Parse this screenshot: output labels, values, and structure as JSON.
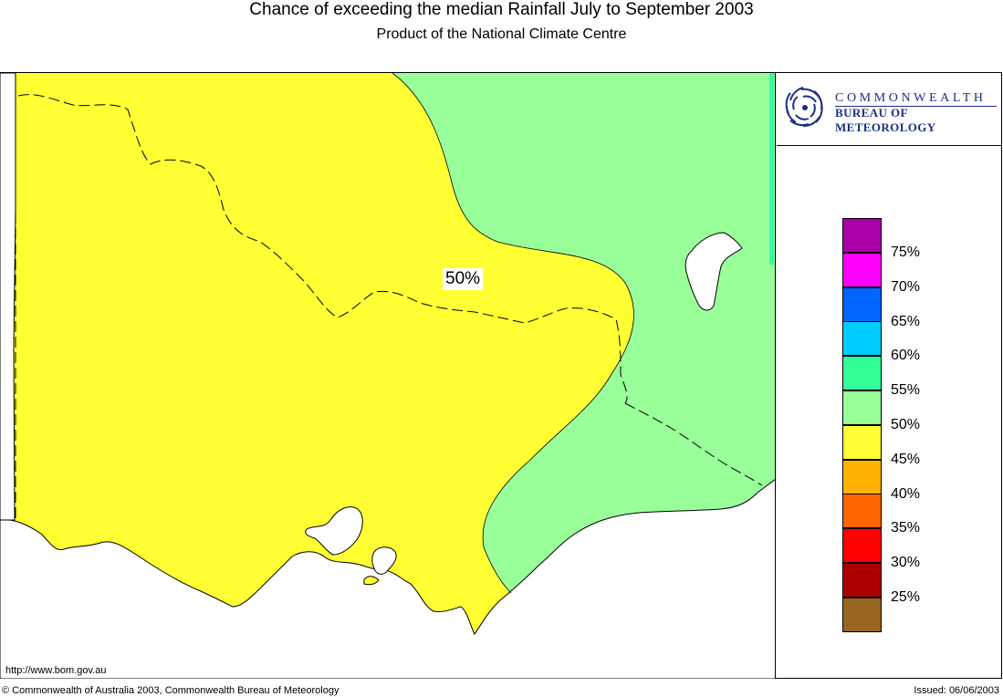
{
  "header": {
    "title": "Chance of exceeding the median Rainfall July to September 2003",
    "subtitle": "Product of the National Climate Centre"
  },
  "logo": {
    "line1": "COMMONWEALTH",
    "line2": "BUREAU OF METEOROLOGY",
    "icon": "bom-spiral-logo-icon",
    "color": "#1b2f86"
  },
  "map": {
    "contour_label": "50%",
    "region_colors": {
      "yellow": "#ffff33",
      "green": "#99ff99",
      "sea": "#ffffff",
      "teal_strip": "#33ffaa"
    }
  },
  "legend": {
    "items": [
      {
        "color": "#aa00aa",
        "label": "75%"
      },
      {
        "color": "#ff00ff",
        "label": "70%"
      },
      {
        "color": "#0066ff",
        "label": "65%"
      },
      {
        "color": "#00ccff",
        "label": "60%"
      },
      {
        "color": "#33ff99",
        "label": "55%"
      },
      {
        "color": "#99ff99",
        "label": "50%"
      },
      {
        "color": "#ffff33",
        "label": "45%"
      },
      {
        "color": "#ffb300",
        "label": "40%"
      },
      {
        "color": "#ff6600",
        "label": "35%"
      },
      {
        "color": "#ff0000",
        "label": "30%"
      },
      {
        "color": "#aa0000",
        "label": "25%"
      },
      {
        "color": "#996622",
        "label": ""
      }
    ]
  },
  "footer": {
    "url": "http://www.bom.gov.au",
    "copyright": "© Commonwealth of Australia 2003, Commonwealth Bureau of Meteorology",
    "issued": "Issued: 06/06/2003"
  }
}
